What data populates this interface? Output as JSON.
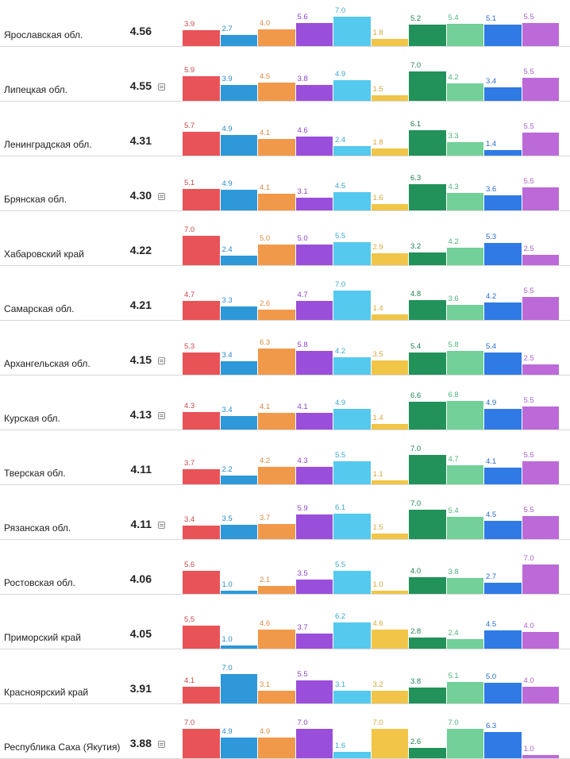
{
  "chart_data": {
    "type": "bar",
    "title": "",
    "xlabel": "",
    "ylabel": "",
    "ylim": [
      0,
      7.0
    ],
    "series_colors": [
      "#e85357",
      "#2e98d8",
      "#f1994a",
      "#9a4fdb",
      "#55c9ee",
      "#f0c548",
      "#22915a",
      "#72d098",
      "#2f7ae5",
      "#bb6ad8"
    ],
    "label_colors": [
      "#c9484b",
      "#2a8ac4",
      "#d98a42",
      "#8a45c5",
      "#3aa9cf",
      "#d4a93a",
      "#1f8150",
      "#4fb37b",
      "#2a6cc9",
      "#a95fc6"
    ],
    "rows": [
      {
        "name": "Ярославская обл.",
        "score": "4.56",
        "note": false,
        "values": [
          3.9,
          2.7,
          4.0,
          5.6,
          7.0,
          1.8,
          5.2,
          5.4,
          5.1,
          5.5
        ]
      },
      {
        "name": "Липецкая обл.",
        "score": "4.55",
        "note": true,
        "values": [
          5.9,
          3.9,
          4.5,
          3.8,
          4.9,
          1.5,
          7.0,
          4.2,
          3.4,
          5.5
        ]
      },
      {
        "name": "Ленинградская обл.",
        "score": "4.31",
        "note": false,
        "values": [
          5.7,
          4.9,
          4.1,
          4.6,
          2.4,
          1.8,
          6.1,
          3.3,
          1.4,
          5.5
        ]
      },
      {
        "name": "Брянская обл.",
        "score": "4.30",
        "note": true,
        "values": [
          5.1,
          4.9,
          4.1,
          3.1,
          4.5,
          1.6,
          6.3,
          4.3,
          3.6,
          5.5
        ]
      },
      {
        "name": "Хабаровский край",
        "score": "4.22",
        "note": false,
        "values": [
          7.0,
          2.4,
          5.0,
          5.0,
          5.5,
          2.9,
          3.2,
          4.2,
          5.3,
          2.5
        ]
      },
      {
        "name": "Самарская обл.",
        "score": "4.21",
        "note": false,
        "values": [
          4.7,
          3.3,
          2.6,
          4.7,
          7.0,
          1.4,
          4.8,
          3.6,
          4.2,
          5.5
        ]
      },
      {
        "name": "Архангельская обл.",
        "score": "4.15",
        "note": true,
        "values": [
          5.3,
          3.4,
          6.3,
          5.8,
          4.2,
          3.5,
          5.4,
          5.8,
          5.4,
          2.5
        ]
      },
      {
        "name": "Курская обл.",
        "score": "4.13",
        "note": true,
        "values": [
          4.3,
          3.4,
          4.1,
          4.1,
          4.9,
          1.4,
          6.6,
          6.8,
          4.9,
          5.5
        ]
      },
      {
        "name": "Тверская обл.",
        "score": "4.11",
        "note": false,
        "values": [
          3.7,
          2.2,
          4.2,
          4.3,
          5.5,
          1.1,
          7.0,
          4.7,
          4.1,
          5.5
        ]
      },
      {
        "name": "Рязанская обл.",
        "score": "4.11",
        "note": true,
        "values": [
          3.4,
          3.5,
          3.7,
          5.9,
          6.1,
          1.5,
          7.0,
          5.4,
          4.5,
          5.5
        ]
      },
      {
        "name": "Ростовская обл.",
        "score": "4.06",
        "note": false,
        "values": [
          5.6,
          1.0,
          2.1,
          3.5,
          5.5,
          1.0,
          4.0,
          3.8,
          2.7,
          7.0
        ]
      },
      {
        "name": "Приморский край",
        "score": "4.05",
        "note": false,
        "values": [
          5.5,
          1.0,
          4.6,
          3.7,
          6.2,
          4.6,
          2.8,
          2.4,
          4.5,
          4.0
        ]
      },
      {
        "name": "Красноярский край",
        "score": "3.91",
        "note": false,
        "values": [
          4.1,
          7.0,
          3.1,
          5.5,
          3.1,
          3.2,
          3.8,
          5.1,
          5.0,
          4.0
        ]
      },
      {
        "name": "Республика Саха (Якутия)",
        "score": "3.88",
        "note": true,
        "values": [
          7.0,
          4.9,
          4.9,
          7.0,
          1.6,
          7.0,
          2.6,
          7.0,
          6.3,
          1.0
        ]
      }
    ]
  }
}
